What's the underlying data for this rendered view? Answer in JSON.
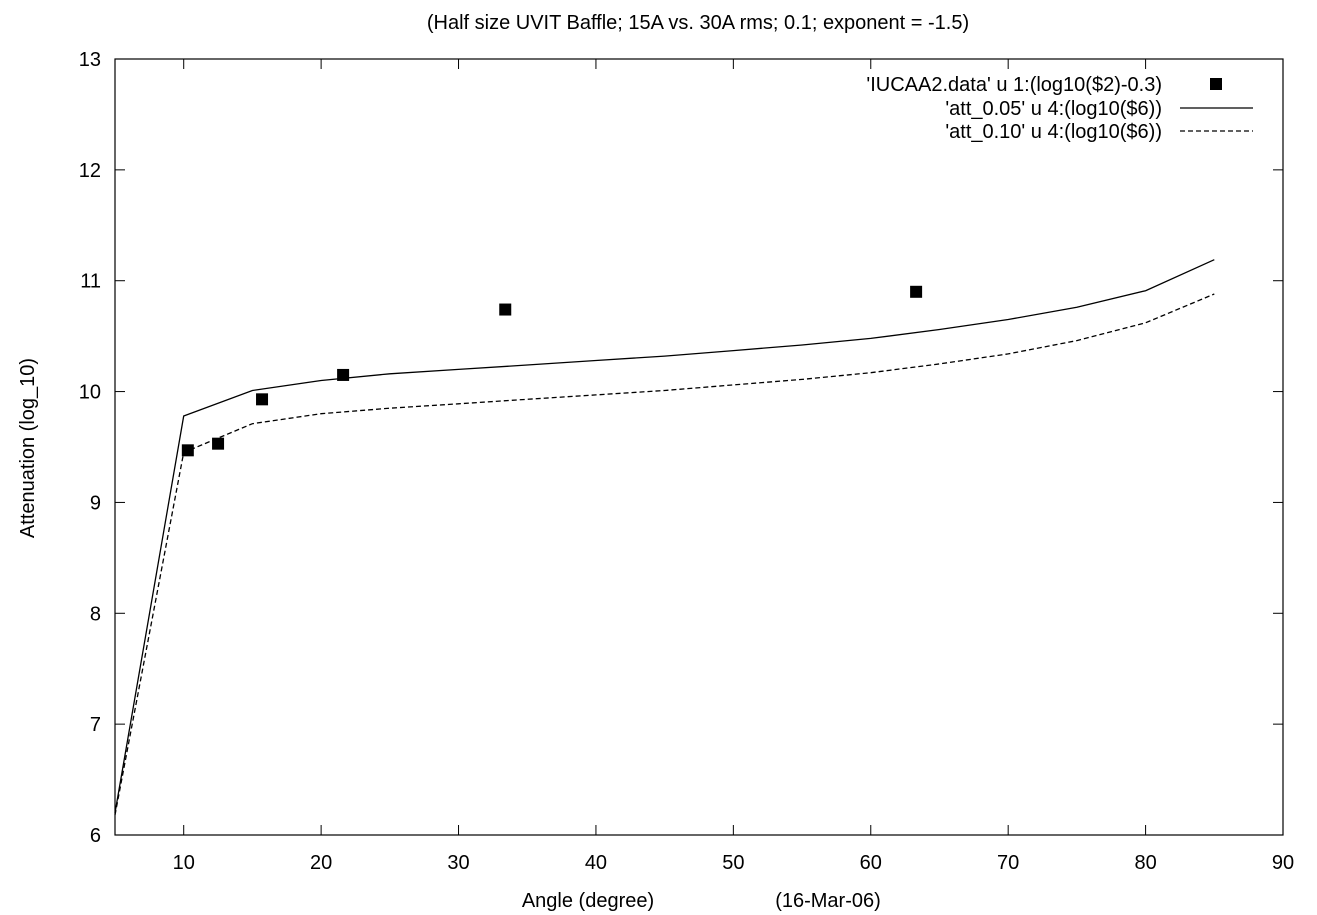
{
  "chart_data": {
    "type": "line",
    "title": "(Half size UVIT Baffle; 15A vs. 30A rms; 0.1; exponent = -1.5)",
    "xlabel": "Angle (degree)",
    "xlabel_note": "(16-Mar-06)",
    "ylabel": "Attenuation (log_10)",
    "xlim": [
      5,
      90
    ],
    "ylim": [
      6,
      13
    ],
    "x_ticks": [
      10,
      20,
      30,
      40,
      50,
      60,
      70,
      80,
      90
    ],
    "y_ticks": [
      6,
      7,
      8,
      9,
      10,
      11,
      12,
      13
    ],
    "grid": false,
    "legend_position": "top-right",
    "series": [
      {
        "name": "'IUCAA2.data' u 1:(log10($2)-0.3)",
        "style": "points",
        "marker": "filled-square",
        "color": "#000000",
        "x": [
          10.3,
          12.5,
          15.7,
          21.6,
          33.4,
          63.3
        ],
        "y": [
          9.47,
          9.53,
          9.93,
          10.15,
          10.74,
          10.9
        ]
      },
      {
        "name": "'att_0.05' u 4:(log10($6))",
        "style": "solid",
        "color": "#000000",
        "x": [
          5,
          10,
          15,
          20,
          25,
          30,
          35,
          40,
          45,
          50,
          55,
          60,
          65,
          70,
          75,
          80,
          85
        ],
        "y": [
          6.2,
          9.78,
          10.01,
          10.1,
          10.16,
          10.2,
          10.24,
          10.28,
          10.32,
          10.37,
          10.42,
          10.48,
          10.56,
          10.65,
          10.76,
          10.91,
          11.19
        ]
      },
      {
        "name": "'att_0.10' u 4:(log10($6))",
        "style": "dashed",
        "color": "#000000",
        "x": [
          5,
          10,
          15,
          20,
          25,
          30,
          35,
          40,
          45,
          50,
          55,
          60,
          65,
          70,
          75,
          80,
          85
        ],
        "y": [
          6.18,
          9.45,
          9.71,
          9.8,
          9.85,
          9.89,
          9.93,
          9.97,
          10.01,
          10.06,
          10.11,
          10.17,
          10.25,
          10.34,
          10.46,
          10.62,
          10.88
        ]
      }
    ]
  }
}
